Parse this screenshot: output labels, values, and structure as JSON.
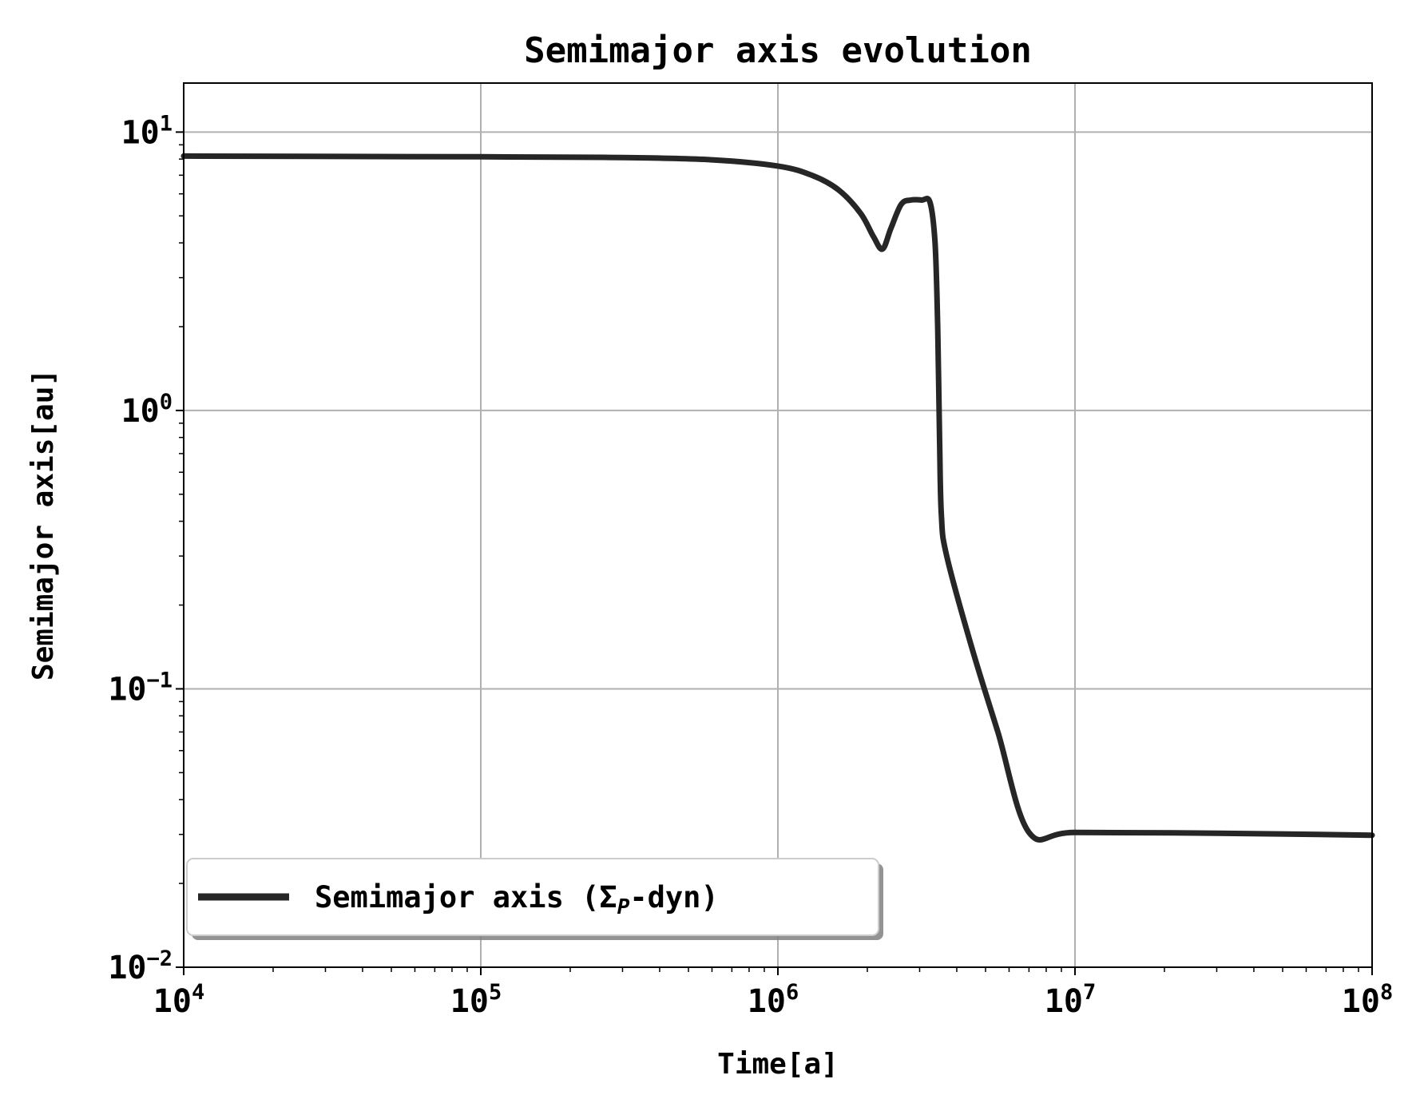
{
  "chart_data": {
    "type": "line",
    "title": "Semimajor axis evolution",
    "xlabel": "Time[a]",
    "ylabel": "Semimajor axis[au]",
    "xscale": "log",
    "yscale": "log",
    "xlim": [
      10000,
      100000000
    ],
    "ylim": [
      0.01,
      15
    ],
    "grid": true,
    "legend_position": "lower-left",
    "x_ticks": [
      {
        "value": 10000,
        "base": "10",
        "exp": "4"
      },
      {
        "value": 100000,
        "base": "10",
        "exp": "5"
      },
      {
        "value": 1000000,
        "base": "10",
        "exp": "6"
      },
      {
        "value": 10000000,
        "base": "10",
        "exp": "7"
      },
      {
        "value": 100000000,
        "base": "10",
        "exp": "8"
      }
    ],
    "y_ticks": [
      {
        "value": 0.01,
        "base": "10",
        "exp": "−2"
      },
      {
        "value": 0.1,
        "base": "10",
        "exp": "−1"
      },
      {
        "value": 1,
        "base": "10",
        "exp": "0"
      },
      {
        "value": 10,
        "base": "10",
        "exp": "1"
      }
    ],
    "series": [
      {
        "name": "Semimajor axis (ΣP-dyn)",
        "legend_main": "Semimajor axis (Σ",
        "legend_sub": "P",
        "legend_tail": "-dyn)",
        "color": "#262626",
        "x": [
          10000,
          100000,
          300000,
          600000,
          1000000,
          1300000,
          1600000,
          1900000,
          2100000,
          2250000,
          2400000,
          2600000,
          2800000,
          3050000,
          3250000,
          3380000,
          3450000,
          3500000,
          3550000,
          3700000,
          4500000,
          5500000,
          7000000,
          10000000,
          30000000,
          100000000
        ],
        "y": [
          8.2,
          8.15,
          8.1,
          7.95,
          7.55,
          7.0,
          6.2,
          5.1,
          4.2,
          3.8,
          4.5,
          5.5,
          5.7,
          5.7,
          5.6,
          4.0,
          2.0,
          0.8,
          0.42,
          0.3,
          0.14,
          0.07,
          0.0305,
          0.0305,
          0.0303,
          0.0298
        ]
      }
    ]
  }
}
